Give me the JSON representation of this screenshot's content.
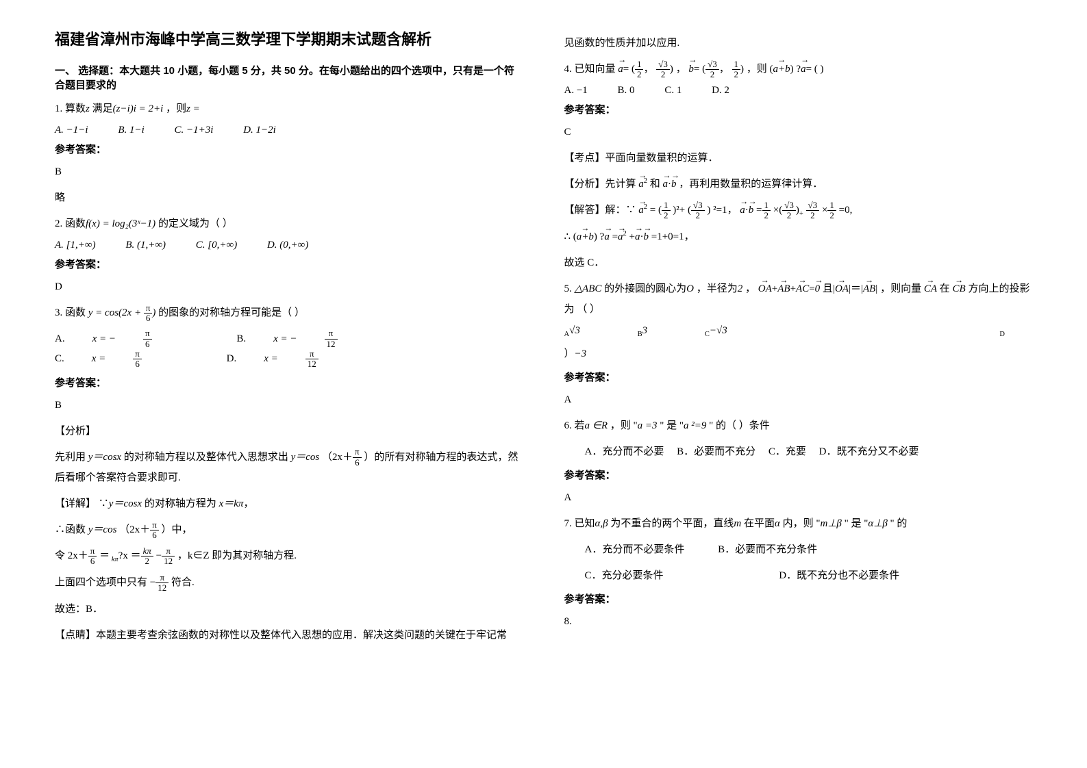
{
  "title": "福建省漳州市海峰中学高三数学理下学期期末试题含解析",
  "section1_head": "一、 选择题：本大题共 10 小题，每小题 5 分，共 50 分。在每小题给出的四个选项中，只有是一个符合题目要求的",
  "q1": {
    "stem_a": "1. 算数",
    "stem_b": "满足",
    "stem_c": "，则",
    "math1": "z",
    "math2": "(z−i)i = 2+i",
    "math3": "z =",
    "optA": "A.  −1−i",
    "optB": "B.  1−i",
    "optC": "C.  −1+3i",
    "optD": "D.  1−2i",
    "answer_label": "参考答案：",
    "answer": "B",
    "略": "略"
  },
  "q2": {
    "stem_a": "2. 函数",
    "stem_b": "的定义域为（           ）",
    "math1": "f(x) = log₂(3ˣ−1)",
    "optA": "A.  [1,+∞)",
    "optB": "B.  (1,+∞)",
    "optC": "C.  [0,+∞)",
    "optD": "D.  (0,+∞)",
    "answer_label": "参考答案：",
    "answer": "D"
  },
  "q3": {
    "stem_a": "3. 函数",
    "stem_b": "的图象的对称轴方程可能是（      ）",
    "math1": "y = cos(2x + ",
    "math1b": ")",
    "pi6_num": "π",
    "pi6_den": "6",
    "optA_pre": "A. ",
    "optA_math": "x = −",
    "optA_num": "π",
    "optA_den": "6",
    "optB_pre": "B. ",
    "optB_math": "x = −",
    "optB_num": "π",
    "optB_den": "12",
    "optC_pre": "C. ",
    "optC_math": "x = ",
    "optC_num": "π",
    "optC_den": "6",
    "optD_pre": "D. ",
    "optD_math": "x = ",
    "optD_num": "π",
    "optD_den": "12",
    "answer_label": "参考答案：",
    "answer": "B",
    "analysis_label": "【分析】",
    "detail1a": "先利用 ",
    "detail1b": " 的对称轴方程以及整体代入思想求出 ",
    "detail1c": "（2x",
    "detail1d": "）的所有对称轴方程的表达式，然后看哪个答案符合要求即可.",
    "y_cosx": "y＝cosx",
    "y_cos": "y＝cos",
    "plus": "＋",
    "pi_num": "π",
    "pi_den": "6",
    "detail_label": "【详解】",
    "detail2a": "∵",
    "detail2b": " 的对称轴方程为 ",
    "detail2c": "，",
    "x_kpi": "x＝kπ",
    "detail3a": "∴函数 ",
    "detail3b": "（2x",
    "detail3c": "）中，",
    "detail4a": "令 2x",
    "detail4b": "＝",
    "detail4c": "?x",
    "detail4d": "＝",
    "kpi_num": "kπ",
    "kpi_den": "2",
    "minus": "−",
    "pi12_num": "π",
    "pi12_den": "12",
    "detail4e": "，k∈Z 即为其对称轴方程.",
    "kpi": " kπ",
    "detail5a": "上面四个选项中只有 ",
    "detail5b": " 符合.",
    "neg": "−",
    "detail6": "故选：B．",
    "point_label": "【点睛】",
    "point": "本题主要考查余弦函数的对称性以及整体代入思想的应用．解决这类问题的关键在于牢记常"
  },
  "col2_top": "见函数的性质并加以应用.",
  "q4": {
    "stem_a": "4. 已知向量",
    "stem_b": "，",
    "stem_c": "，则 (",
    "stem_d": ") ?",
    "stem_e": "= (       )",
    "a": "a",
    "b": "b",
    "ab": "a+b",
    "a_comp_open": "(",
    "a_comp_close": ")",
    "half_num": "1",
    "half_den": "2",
    "rt3_2_num": "√3",
    "rt3_2_den": "2",
    "comma": "，",
    "eq": "=",
    "optA": "A. −1",
    "optB": "B. 0",
    "optC": "C. 1",
    "optD": "D. 2",
    "answer_label": "参考答案：",
    "answer": "C",
    "kd_label": "【考点】",
    "kd": "平面向量数量积的运算．",
    "fx_label": "【分析】",
    "fx": "先计算 ",
    "fx2": " 和 ",
    "fx3": "，再利用数量积的运算律计算．",
    "a2": "a",
    "ab_dot": "a·b",
    "jd_label": "【解答】",
    "jd_a": "解：∵",
    "jd_b": "= (",
    "jd_c": ")²+ (",
    "jd_d": ") ²=1，",
    "jd_e": "=",
    "jd_f": "×(",
    "jd_g": ")",
    "jd_h": "×",
    "jd_i": "=0,",
    "jd2_a": "∴ (",
    "jd2_b": ") ?",
    "jd2_c": "=",
    "jd2_d": "+",
    "jd2_e": "=1+0=1，",
    "jd3": "故选 C．"
  },
  "q5": {
    "stem_a": "5. ",
    "tri": "△ABC",
    "stem_b": " 的外接圆的圆心为",
    "O": "O",
    "stem_c": "，半径为",
    "two": "2",
    "stem_d": "，",
    "oa": "OA",
    "ab": "AB",
    "ac": "AC",
    "zero": "0",
    "stem_e": " 且",
    "stem_f": "|＝|",
    "stem_g": "，则向量 ",
    "ca": "CA",
    "stem_h": " 在 ",
    "cb": "CB",
    "stem_i": " 方向上的投影为 （    ）",
    "plus": "+",
    "eq": "=",
    "optA_pre": "A",
    "optA": "√3",
    "optB_pre": "B",
    "optB": "3",
    "optC_pre": "C",
    "optC": "−√3",
    "optD_pre": "D",
    "optD_pre2": "）",
    "optD": "−3",
    "answer_label": "参考答案：",
    "answer": "A"
  },
  "q6": {
    "stem_a": "6. 若",
    "stem_b": "，则 \"",
    "stem_c": "\" 是 \"",
    "stem_d": "\" 的（      ）条件",
    "aR": "a ∈R",
    "a3": "a =3",
    "a29": "a ²=9",
    "optA": "A．充分而不必要",
    "optB": "B．必要而不充分",
    "optC": "C．充要",
    "optD": "D．既不充分又不必要",
    "answer_label": "参考答案：",
    "answer": "A"
  },
  "q7": {
    "stem_a": "7. 已知",
    "ab": "α,β",
    "stem_b": "为不重合的两个平面，直线",
    "m": "m",
    "stem_c": "在平面",
    "alpha": "α",
    "stem_d": "内，则 \"",
    "mpb": "m⊥β",
    "stem_e": "\" 是 \"",
    "apb": "α⊥β",
    "stem_f": "\" 的",
    "optA": "A．充分而不必要条件",
    "optB": "B．必要而不充分条件",
    "optC": "C．充分必要条件",
    "optD": "D．既不充分也不必要条件",
    "answer_label": "参考答案：",
    "answer_blank": "",
    "q8": "8."
  }
}
